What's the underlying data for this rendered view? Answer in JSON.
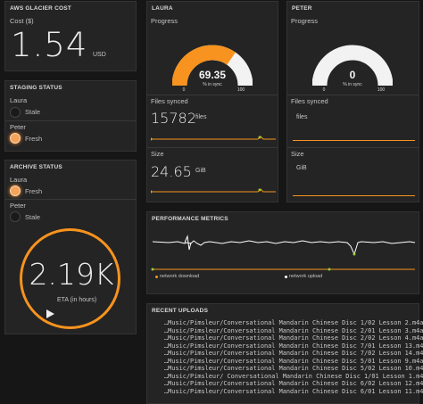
{
  "glacier": {
    "title": "AWS GLACIER COST",
    "cost_label": "Cost ($)",
    "value": "1.54",
    "unit": "USD"
  },
  "staging": {
    "title": "STAGING STATUS",
    "items": [
      {
        "name": "Laura",
        "status": "Stale",
        "active": false
      },
      {
        "name": "Peter",
        "status": "Fresh",
        "active": true
      }
    ]
  },
  "archive": {
    "title": "ARCHIVE STATUS",
    "items": [
      {
        "name": "Laura",
        "status": "Fresh",
        "active": true
      },
      {
        "name": "Peter",
        "status": "Stale",
        "active": false
      }
    ],
    "eta_value": "2.19K",
    "eta_label": "ETA (in hours)",
    "play_icon": "play-icon",
    "accent": "#f7931e"
  },
  "laura": {
    "title": "LAURA",
    "progress_label": "Progress",
    "progress_value": "69.35",
    "progress_fraction": 0.6935,
    "gauge_sub": "% in sync",
    "gauge_min": "0",
    "gauge_max": "100",
    "files_label": "Files synced",
    "files_value": "15782",
    "files_unit": "files",
    "size_label": "Size",
    "size_value": "24.65",
    "size_unit": "GiB"
  },
  "peter": {
    "title": "PETER",
    "progress_label": "Progress",
    "progress_value": "0",
    "progress_fraction": 0,
    "gauge_sub": "% in sync",
    "gauge_min": "0",
    "gauge_max": "100",
    "files_label": "Files synced",
    "files_value": "",
    "files_unit": "files",
    "size_label": "Size",
    "size_value": "",
    "size_unit": "GiB"
  },
  "metrics": {
    "title": "PERFORMANCE METRICS",
    "legend_download": "network download",
    "legend_upload": "network upload",
    "download_color": "#f7931e",
    "upload_color": "#ffffff"
  },
  "uploads": {
    "title": "RECENT UPLOADS",
    "items": [
      "…Music/Pimsleur/Conversational Mandarin Chinese Disc 1/02 Lesson 2.m4a",
      "…Music/Pimsleur/Conversational Mandarin Chinese Disc 2/01 Lesson 3.m4a",
      "…Music/Pimsleur/Conversational Mandarin Chinese Disc 2/02 Lesson 4.m4a",
      "…Music/Pimsleur/Conversational Mandarin Chinese Disc 7/01 Lesson 13.m4a",
      "…Music/Pimsleur/Conversational Mandarin Chinese Disc 7/02 Lesson 14.m4a",
      "…Music/Pimsleur/Conversational Mandarin Chinese Disc 5/01 Lesson 9.m4a",
      "…Music/Pimsleur/Conversational Mandarin Chinese Disc 5/02 Lesson 10.m4a",
      "…Music/Pimsleur/ Conversational Mandarin Chinese Disc 1/01 Lesson 1.m4a",
      "…Music/Pimsleur/Conversational Mandarin Chinese Disc 6/02 Lesson 12.m4a",
      "…Music/Pimsleur/Conversational Mandarin Chinese Disc 6/01 Lesson 11.m4a"
    ]
  }
}
